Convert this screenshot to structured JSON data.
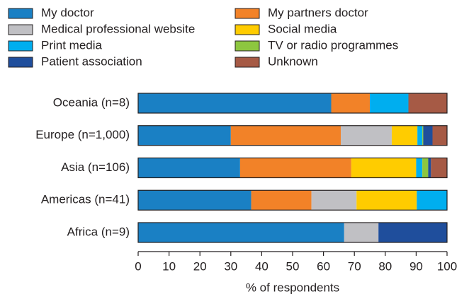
{
  "chart_data": {
    "type": "stacked-bar-horizontal",
    "categories": [
      "Oceania (n=8)",
      "Europe (n=1,000)",
      "Asia (n=106)",
      "Americas (n=41)",
      "Africa (n=9)"
    ],
    "series": [
      {
        "name": "My doctor",
        "color": "#1a80c4",
        "values": [
          62.5,
          30,
          33,
          36.6,
          66.7
        ]
      },
      {
        "name": "My partners doctor",
        "color": "#f28228",
        "values": [
          12.5,
          35.6,
          36,
          19.5,
          0
        ]
      },
      {
        "name": "Medical professional website",
        "color": "#c0c0c4",
        "values": [
          0,
          16.5,
          0,
          14.6,
          11.1
        ]
      },
      {
        "name": "Social media",
        "color": "#ffcc00",
        "values": [
          0,
          8.3,
          21,
          19.5,
          0
        ]
      },
      {
        "name": "Print media",
        "color": "#00aeef",
        "values": [
          12.5,
          1.6,
          2,
          9.8,
          0
        ]
      },
      {
        "name": "TV or radio programmes",
        "color": "#8dc63f",
        "values": [
          0,
          0.3,
          1.9,
          0,
          0
        ]
      },
      {
        "name": "Patient association",
        "color": "#1f4e9c",
        "values": [
          0,
          3,
          0.9,
          0,
          22.2
        ]
      },
      {
        "name": "Unknown",
        "color": "#a65a45",
        "values": [
          12.5,
          4.7,
          5.2,
          0,
          0
        ]
      }
    ],
    "xlabel": "% of respondents",
    "xlim": [
      0,
      100
    ],
    "xticks": [
      0,
      10,
      20,
      30,
      40,
      50,
      60,
      70,
      80,
      90,
      100
    ]
  }
}
